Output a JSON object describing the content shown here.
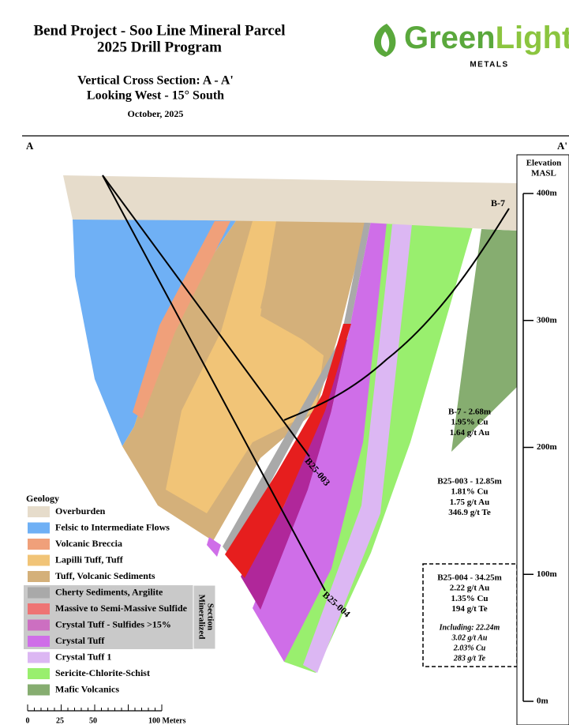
{
  "header": {
    "title": [
      "Bend Project - Soo Line Mineral Parcel",
      "2025 Drill Program"
    ],
    "subtitle": [
      "Vertical Cross Section: A - A'",
      "Looking West - 15° South"
    ],
    "date": "October, 2025"
  },
  "logo": {
    "word1": "Green",
    "word2": "Light",
    "sub": "METALS"
  },
  "section": {
    "left": "A",
    "right": "A'"
  },
  "elevation": {
    "title": [
      "Elevation",
      "MASL"
    ],
    "ticks": [
      "400m",
      "300m",
      "200m",
      "100m",
      "0m"
    ]
  },
  "holes": [
    "B-7",
    "B25-003",
    "B25-004"
  ],
  "intercepts": [
    {
      "lines": [
        "B-7 - 2.68m",
        "1.95% Cu",
        "1.64 g/t Au"
      ]
    },
    {
      "lines": [
        "B25-003 - 12.85m",
        "1.81% Cu",
        "1.75 g/t Au",
        "346.9 g/t Te"
      ]
    },
    {
      "lines": [
        "B25-004 - 34.25m",
        "2.22 g/t Au",
        "1.35% Cu",
        "194 g/t Te"
      ],
      "including": [
        "Including: 22.24m",
        "3.02 g/t Au",
        "2.03% Cu",
        "283 g/t Te"
      ]
    }
  ],
  "legend": {
    "title": "Geology",
    "items": [
      {
        "name": "Overburden",
        "color": "#e6dccb"
      },
      {
        "name": "Felsic to Intermediate Flows",
        "color": "#6fb0f5"
      },
      {
        "name": "Volcanic Breccia",
        "color": "#f0a07a"
      },
      {
        "name": "Lapilli Tuff, Tuff",
        "color": "#f1c477"
      },
      {
        "name": "Tuff, Volcanic Sediments",
        "color": "#d4b07a"
      },
      {
        "name": "Cherty Sediments, Argilite",
        "color": "#a9a9a9"
      },
      {
        "name": "Massive to Semi-Massive Sulfide",
        "color": "#ee7474"
      },
      {
        "name": "Crystal Tuff - Sulfides >15%",
        "color": "#cc6fc1"
      },
      {
        "name": "Crystal Tuff",
        "color": "#cf6ee8"
      },
      {
        "name": "Crystal Tuff 1",
        "color": "#dcb7f3"
      },
      {
        "name": "Sericite-Chlorite-Schist",
        "color": "#99ef6e"
      },
      {
        "name": "Mafic Volcanics",
        "color": "#86ad70"
      }
    ],
    "mineralized": [
      "Mineralized",
      "Section"
    ]
  },
  "scale": {
    "labels": [
      "0",
      "25",
      "50",
      "100 Meters"
    ]
  }
}
